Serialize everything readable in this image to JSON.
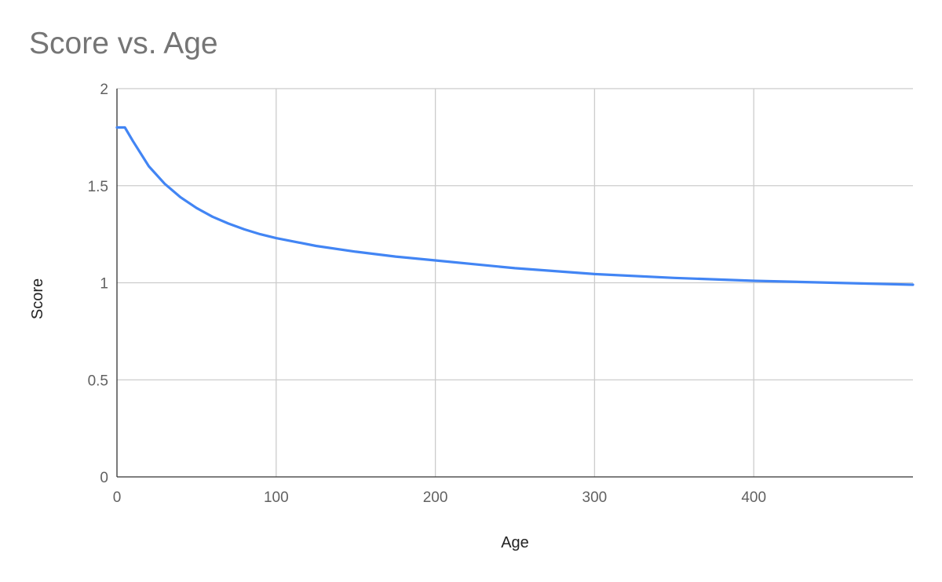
{
  "chart_data": {
    "type": "line",
    "title": "Score vs. Age",
    "xlabel": "Age",
    "ylabel": "Score",
    "xlim": [
      0,
      500
    ],
    "ylim": [
      0,
      2
    ],
    "x_ticks": [
      "0",
      "100",
      "200",
      "300",
      "400"
    ],
    "y_ticks": [
      "0",
      "0.5",
      "1",
      "1.5",
      "2"
    ],
    "grid": true,
    "legend": "none",
    "series": [
      {
        "color": "#4285f4",
        "x": [
          0,
          5,
          10,
          20,
          30,
          40,
          50,
          60,
          70,
          80,
          90,
          100,
          125,
          150,
          175,
          200,
          250,
          300,
          350,
          400,
          450,
          500
        ],
        "y": [
          1.8,
          1.8,
          1.73,
          1.6,
          1.51,
          1.44,
          1.385,
          1.34,
          1.305,
          1.275,
          1.25,
          1.23,
          1.19,
          1.16,
          1.135,
          1.115,
          1.075,
          1.045,
          1.025,
          1.01,
          1.0,
          0.99
        ]
      }
    ]
  }
}
